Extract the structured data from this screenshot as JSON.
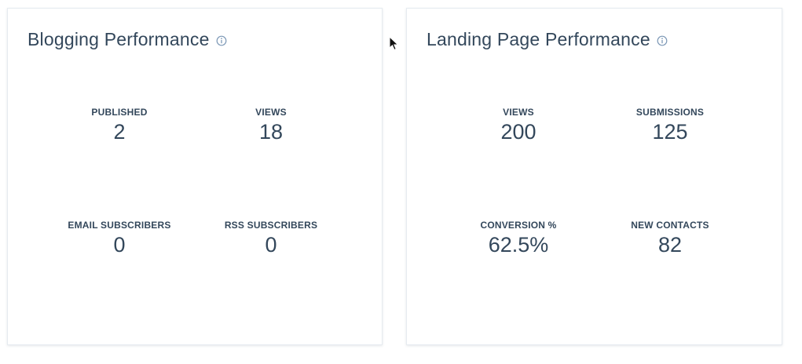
{
  "blogging": {
    "title": "Blogging Performance",
    "info_icon": "info-icon",
    "metrics": [
      {
        "label": "PUBLISHED",
        "value": "2"
      },
      {
        "label": "VIEWS",
        "value": "18"
      },
      {
        "label": "EMAIL SUBSCRIBERS",
        "value": "0"
      },
      {
        "label": "RSS SUBSCRIBERS",
        "value": "0"
      }
    ]
  },
  "landing": {
    "title": "Landing Page Performance",
    "info_icon": "info-icon",
    "metrics": [
      {
        "label": "VIEWS",
        "value": "200"
      },
      {
        "label": "SUBMISSIONS",
        "value": "125"
      },
      {
        "label": "CONVERSION %",
        "value": "62.5%"
      },
      {
        "label": "NEW CONTACTS",
        "value": "82"
      }
    ]
  },
  "colors": {
    "text": "#33475b",
    "card_border": "#e6ebf0",
    "icon": "#7c98b6"
  }
}
